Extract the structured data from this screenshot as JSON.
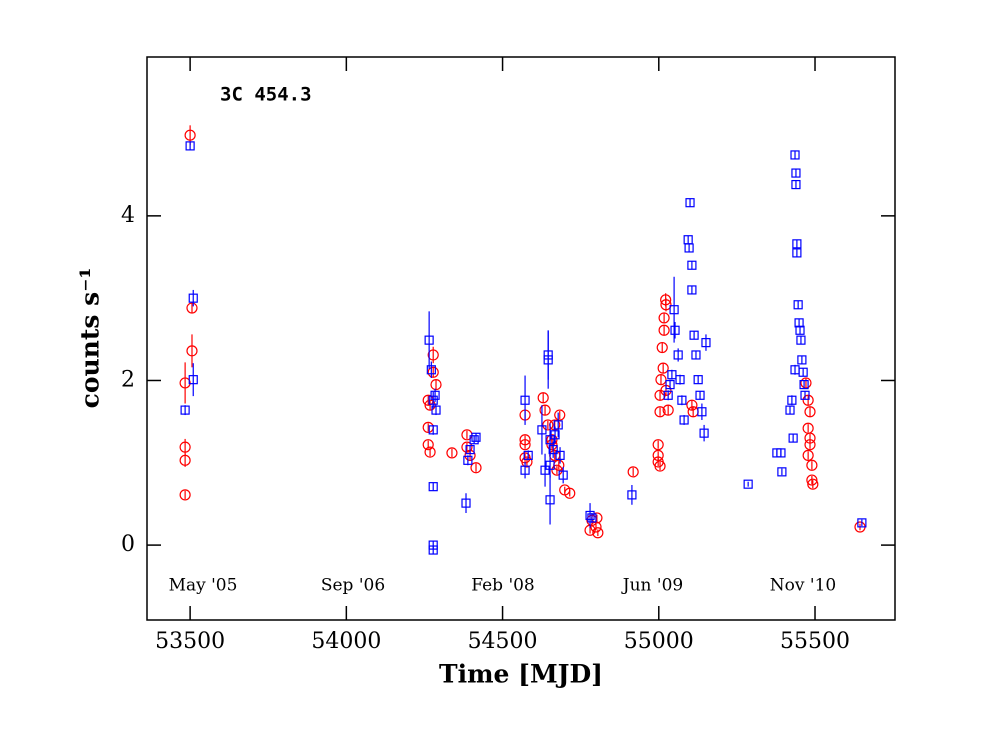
{
  "chart_data": {
    "type": "scatter",
    "title": "3C 454.3",
    "xlabel": "Time [MJD]",
    "ylabel": "counts s⁻¹",
    "annotations": [
      "May '05",
      "Sep '06",
      "Feb '08",
      "Jun '09",
      "Nov '10"
    ],
    "xlim": [
      53362,
      55756
    ],
    "ylim": [
      -0.91,
      5.93
    ],
    "xticks": [
      53500,
      54000,
      54500,
      55000,
      55500
    ],
    "yticks": [
      0,
      2,
      4
    ],
    "series": [
      {
        "color": "#ff0000",
        "marker": "circle",
        "x": [
          53484,
          53484,
          53484,
          53484,
          53500,
          53506,
          53506,
          54262,
          54268,
          54262,
          54262,
          54268,
          54278,
          54278,
          54287,
          54338,
          54386,
          54386,
          54396,
          54415,
          54572,
          54572,
          54572,
          54578,
          54572,
          54630,
          54636,
          54645,
          54658,
          54667,
          54674,
          54680,
          54658,
          54667,
          54683,
          54699,
          54715,
          54780,
          54786,
          54799,
          54805,
          54802,
          54918,
          54998,
          54998,
          54998,
          55004,
          55004,
          55004,
          55007,
          55011,
          55017,
          55017,
          55023,
          55014,
          55023,
          55030,
          55022,
          55106,
          55110,
          55478,
          55484,
          55478,
          55484,
          55490,
          55490,
          55493,
          55484,
          55478,
          55471,
          55644
        ],
        "values": [
          0.61,
          1.03,
          1.19,
          1.97,
          4.98,
          2.88,
          2.36,
          1.76,
          1.7,
          1.43,
          1.22,
          1.13,
          2.31,
          2.1,
          1.95,
          1.12,
          1.34,
          1.19,
          1.09,
          0.94,
          1.28,
          1.22,
          1.06,
          1.01,
          1.58,
          1.79,
          1.64,
          1.46,
          1.28,
          1.09,
          0.91,
          0.97,
          1.22,
          1.46,
          1.58,
          0.67,
          0.63,
          0.18,
          0.3,
          0.22,
          0.15,
          0.33,
          0.89,
          1.22,
          1.09,
          1.01,
          0.96,
          1.62,
          1.82,
          2.01,
          2.4,
          2.61,
          2.76,
          2.92,
          2.15,
          1.88,
          1.64,
          2.98,
          1.7,
          1.62,
          1.76,
          1.62,
          1.42,
          1.22,
          0.97,
          0.79,
          0.74,
          1.3,
          1.09,
          1.97,
          0.22
        ],
        "errors": [
          0.05,
          0.08,
          0.1,
          0.25,
          0.12,
          0.06,
          0.2,
          0.06,
          0.06,
          0.05,
          0.05,
          0.05,
          0.1,
          0.06,
          0.06,
          0.05,
          0.05,
          0.05,
          0.05,
          0.05,
          0.05,
          0.05,
          0.05,
          0.05,
          0.05,
          0.06,
          0.06,
          0.05,
          0.05,
          0.05,
          0.05,
          0.05,
          0.05,
          0.05,
          0.05,
          0.04,
          0.04,
          0.04,
          0.04,
          0.04,
          0.04,
          0.04,
          0.05,
          0.05,
          0.05,
          0.05,
          0.05,
          0.05,
          0.06,
          0.06,
          0.06,
          0.06,
          0.06,
          0.08,
          0.06,
          0.06,
          0.06,
          0.08,
          0.06,
          0.06,
          0.06,
          0.06,
          0.05,
          0.05,
          0.05,
          0.05,
          0.05,
          0.05,
          0.05,
          0.06,
          0.04
        ]
      },
      {
        "color": "#0000ff",
        "marker": "square",
        "x": [
          53484,
          53500,
          53510,
          53510,
          54265,
          54272,
          54278,
          54284,
          54287,
          54278,
          54278,
          54278,
          54278,
          54383,
          54389,
          54396,
          54409,
          54415,
          54572,
          54572,
          54582,
          54626,
          54636,
          54646,
          54646,
          54652,
          54652,
          54652,
          54662,
          54668,
          54678,
          54684,
          54694,
          54780,
          54786,
          54914,
          55030,
          55036,
          55042,
          55049,
          55052,
          55062,
          55068,
          55074,
          55081,
          55100,
          55094,
          55097,
          55106,
          55106,
          55113,
          55119,
          55126,
          55132,
          55138,
          55145,
          55151,
          55286,
          55378,
          55391,
          55394,
          55420,
          55426,
          55430,
          55436,
          55436,
          55439,
          55439,
          55442,
          55442,
          55446,
          55449,
          55452,
          55455,
          55458,
          55462,
          55465,
          55468,
          55650
        ],
        "values": [
          1.64,
          4.85,
          3.0,
          2.01,
          2.49,
          2.13,
          1.76,
          1.82,
          1.64,
          1.4,
          0.71,
          0.0,
          -0.06,
          0.51,
          1.03,
          1.16,
          1.28,
          1.31,
          1.76,
          0.91,
          1.09,
          1.4,
          0.91,
          2.25,
          2.31,
          1.28,
          0.55,
          0.97,
          1.16,
          1.34,
          1.46,
          1.09,
          0.85,
          0.36,
          0.33,
          0.61,
          1.82,
          1.95,
          2.07,
          2.86,
          2.61,
          2.31,
          2.01,
          1.76,
          1.52,
          4.16,
          3.71,
          3.61,
          3.4,
          3.1,
          2.55,
          2.31,
          2.01,
          1.82,
          1.62,
          1.36,
          2.46,
          0.74,
          1.12,
          1.12,
          0.89,
          1.64,
          1.76,
          1.3,
          2.13,
          4.74,
          4.52,
          4.38,
          3.55,
          3.66,
          2.92,
          2.7,
          2.61,
          2.49,
          2.25,
          2.1,
          1.95,
          1.82,
          0.27
        ],
        "errors": [
          0.06,
          0.05,
          0.1,
          0.2,
          0.35,
          0.1,
          0.1,
          0.08,
          0.06,
          0.06,
          0.05,
          0.05,
          0.05,
          0.12,
          0.06,
          0.05,
          0.05,
          0.05,
          0.3,
          0.1,
          0.06,
          0.3,
          0.2,
          0.35,
          0.3,
          0.2,
          0.3,
          0.15,
          0.1,
          0.1,
          0.15,
          0.1,
          0.1,
          0.15,
          0.06,
          0.12,
          0.06,
          0.06,
          0.06,
          0.4,
          0.1,
          0.08,
          0.06,
          0.06,
          0.06,
          0.05,
          0.05,
          0.05,
          0.05,
          0.05,
          0.05,
          0.05,
          0.05,
          0.05,
          0.1,
          0.1,
          0.1,
          0.03,
          0.04,
          0.04,
          0.04,
          0.05,
          0.06,
          0.05,
          0.06,
          0.05,
          0.05,
          0.05,
          0.05,
          0.05,
          0.05,
          0.05,
          0.05,
          0.05,
          0.05,
          0.05,
          0.05,
          0.05,
          0.04
        ]
      }
    ]
  }
}
